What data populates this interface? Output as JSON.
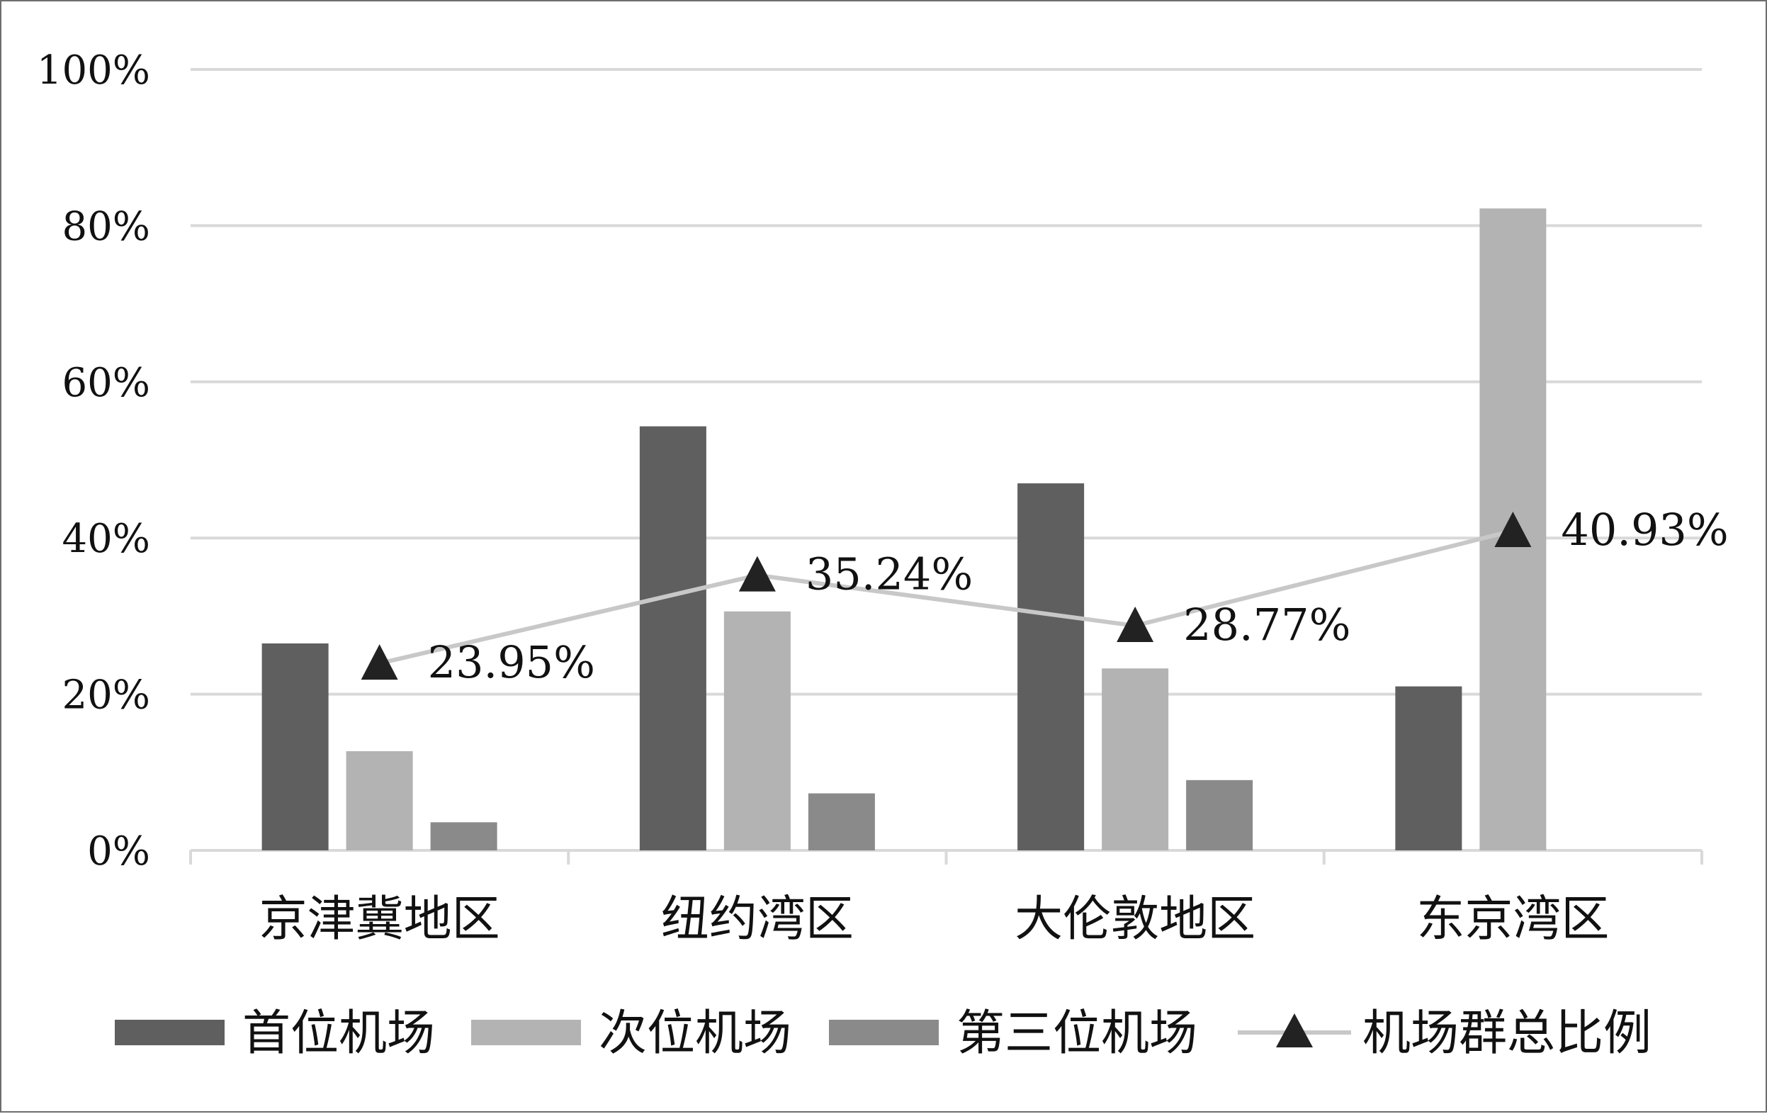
{
  "chart_data": {
    "type": "bar",
    "title": "",
    "xlabel": "",
    "ylabel": "",
    "categories": [
      "京津冀地区",
      "纽约湾区",
      "大伦敦地区",
      "东京湾区"
    ],
    "ylim": [
      0,
      100
    ],
    "yticks": [
      "0%",
      "20%",
      "40%",
      "60%",
      "80%",
      "100%"
    ],
    "grid": true,
    "legend_position": "bottom",
    "series": [
      {
        "name": "首位机场",
        "kind": "bar",
        "color": "#5f5f5f",
        "values": [
          26.5,
          54.3,
          47.0,
          21.0
        ]
      },
      {
        "name": "次位机场",
        "kind": "bar",
        "color": "#b3b3b3",
        "values": [
          12.7,
          30.6,
          23.3,
          82.2
        ]
      },
      {
        "name": "第三位机场",
        "kind": "bar",
        "color": "#8a8a8a",
        "values": [
          3.6,
          7.3,
          9.0,
          null
        ]
      },
      {
        "name": "机场群总比例",
        "kind": "line",
        "marker": "triangle",
        "color": "#c8c8c8",
        "marker_color": "#222222",
        "values": [
          23.95,
          35.24,
          28.77,
          40.93
        ],
        "labels": [
          "23.95%",
          "35.24%",
          "28.77%",
          "40.93%"
        ]
      }
    ]
  }
}
